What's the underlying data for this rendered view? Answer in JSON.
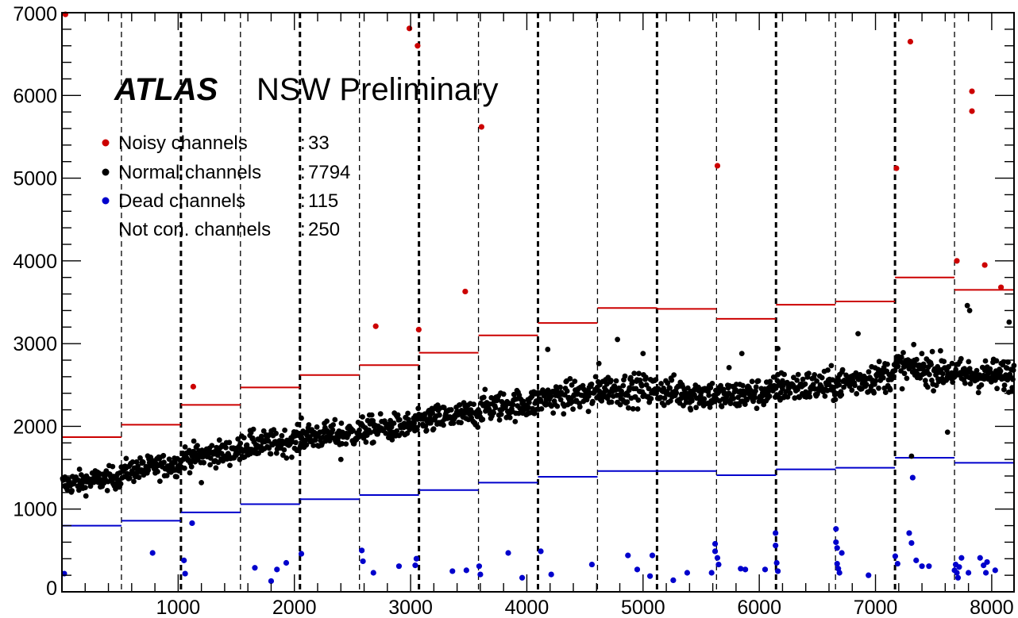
{
  "chart_data": {
    "type": "scatter",
    "title": "",
    "xlabel": "",
    "ylabel": "",
    "xlim": [
      0,
      8192
    ],
    "ylim": [
      0,
      7000
    ],
    "x_ticks": [
      1000,
      2000,
      3000,
      4000,
      5000,
      6000,
      7000,
      8000
    ],
    "y_ticks": [
      0,
      1000,
      2000,
      3000,
      4000,
      5000,
      6000,
      7000
    ],
    "grid": false,
    "experiment_label": "ATLAS",
    "experiment_sublabel": "NSW Preliminary",
    "legend": [
      {
        "label": "Noisy channels",
        "separator": ":",
        "count": "33",
        "color": "#cc0000",
        "marker": "dot"
      },
      {
        "label": "Normal channels",
        "separator": ":",
        "count": "7794",
        "color": "#000000",
        "marker": "dot"
      },
      {
        "label": "Dead channels",
        "separator": ":",
        "count": "115",
        "color": "#0000cc",
        "marker": "dot"
      },
      {
        "label": "Not con. channels",
        "separator": ":",
        "count": "250",
        "color": "",
        "marker": "none"
      }
    ],
    "vpbs_dividers_thin": [
      512,
      1536,
      2560,
      3584,
      4608,
      5632,
      6656,
      7680
    ],
    "vpbs_dividers_thick": [
      1024,
      2048,
      3072,
      4096,
      5120,
      6144,
      7168
    ],
    "board_segments": [
      {
        "x0": 0,
        "x1": 512,
        "noisy_threshold": 1870,
        "dead_threshold": 800,
        "normal_mean": 1300
      },
      {
        "x0": 512,
        "x1": 1024,
        "noisy_threshold": 2020,
        "dead_threshold": 860,
        "normal_mean": 1450
      },
      {
        "x0": 1024,
        "x1": 1536,
        "noisy_threshold": 2260,
        "dead_threshold": 960,
        "normal_mean": 1620
      },
      {
        "x0": 1536,
        "x1": 2048,
        "noisy_threshold": 2470,
        "dead_threshold": 1060,
        "normal_mean": 1760
      },
      {
        "x0": 2048,
        "x1": 2560,
        "noisy_threshold": 2620,
        "dead_threshold": 1120,
        "normal_mean": 1870
      },
      {
        "x0": 2560,
        "x1": 3072,
        "noisy_threshold": 2740,
        "dead_threshold": 1170,
        "normal_mean": 1950
      },
      {
        "x0": 3072,
        "x1": 3584,
        "noisy_threshold": 2890,
        "dead_threshold": 1230,
        "normal_mean": 2060
      },
      {
        "x0": 3584,
        "x1": 4096,
        "noisy_threshold": 3100,
        "dead_threshold": 1320,
        "normal_mean": 2220
      },
      {
        "x0": 4096,
        "x1": 4608,
        "noisy_threshold": 3250,
        "dead_threshold": 1390,
        "normal_mean": 2330
      },
      {
        "x0": 4608,
        "x1": 5120,
        "noisy_threshold": 3430,
        "dead_threshold": 1460,
        "normal_mean": 2450
      },
      {
        "x0": 5120,
        "x1": 5632,
        "noisy_threshold": 3420,
        "dead_threshold": 1460,
        "normal_mean": 2430
      },
      {
        "x0": 5632,
        "x1": 6144,
        "noisy_threshold": 3300,
        "dead_threshold": 1410,
        "normal_mean": 2350
      },
      {
        "x0": 6144,
        "x1": 6656,
        "noisy_threshold": 3470,
        "dead_threshold": 1480,
        "normal_mean": 2470
      },
      {
        "x0": 6656,
        "x1": 7168,
        "noisy_threshold": 3510,
        "dead_threshold": 1500,
        "normal_mean": 2510
      },
      {
        "x0": 7168,
        "x1": 7680,
        "noisy_threshold": 3800,
        "dead_threshold": 1620,
        "normal_mean": 2720
      },
      {
        "x0": 7680,
        "x1": 8192,
        "noisy_threshold": 3650,
        "dead_threshold": 1560,
        "normal_mean": 2620
      }
    ],
    "series": [
      {
        "name": "Noisy channels",
        "color": "#cc0000",
        "points": [
          [
            30,
            6980
          ],
          [
            1130,
            2480
          ],
          [
            2700,
            3210
          ],
          [
            2990,
            6810
          ],
          [
            3060,
            6600
          ],
          [
            3070,
            3170
          ],
          [
            3470,
            3630
          ],
          [
            3610,
            5620
          ],
          [
            5640,
            5150
          ],
          [
            7180,
            5120
          ],
          [
            7300,
            6650
          ],
          [
            7700,
            4000
          ],
          [
            7830,
            6050
          ],
          [
            7830,
            5810
          ],
          [
            7940,
            3950
          ],
          [
            8080,
            3680
          ]
        ]
      },
      {
        "name": "Dead channels",
        "color": "#0000cc",
        "points": [
          [
            20,
            220
          ],
          [
            780,
            470
          ],
          [
            1050,
            380
          ],
          [
            1060,
            220
          ],
          [
            1120,
            830
          ],
          [
            1660,
            290
          ],
          [
            1800,
            130
          ],
          [
            1850,
            270
          ],
          [
            1930,
            350
          ],
          [
            2060,
            460
          ],
          [
            2580,
            500
          ],
          [
            2590,
            370
          ],
          [
            2680,
            230
          ],
          [
            2900,
            310
          ],
          [
            3040,
            320
          ],
          [
            3050,
            400
          ],
          [
            3360,
            250
          ],
          [
            3480,
            260
          ],
          [
            3590,
            310
          ],
          [
            3600,
            210
          ],
          [
            3840,
            470
          ],
          [
            3960,
            170
          ],
          [
            4120,
            490
          ],
          [
            4210,
            210
          ],
          [
            4560,
            330
          ],
          [
            4870,
            440
          ],
          [
            4950,
            270
          ],
          [
            5060,
            190
          ],
          [
            5080,
            440
          ],
          [
            5260,
            140
          ],
          [
            5380,
            230
          ],
          [
            5590,
            230
          ],
          [
            5620,
            580
          ],
          [
            5620,
            490
          ],
          [
            5640,
            410
          ],
          [
            5650,
            330
          ],
          [
            5840,
            280
          ],
          [
            5880,
            270
          ],
          [
            6050,
            270
          ],
          [
            6140,
            710
          ],
          [
            6140,
            560
          ],
          [
            6150,
            350
          ],
          [
            6160,
            250
          ],
          [
            6660,
            760
          ],
          [
            6660,
            600
          ],
          [
            6670,
            530
          ],
          [
            6670,
            340
          ],
          [
            6680,
            280
          ],
          [
            6690,
            230
          ],
          [
            6710,
            470
          ],
          [
            6940,
            200
          ],
          [
            7170,
            430
          ],
          [
            7190,
            340
          ],
          [
            7290,
            710
          ],
          [
            7310,
            590
          ],
          [
            7320,
            1380
          ],
          [
            7350,
            380
          ],
          [
            7400,
            310
          ],
          [
            7460,
            310
          ],
          [
            7700,
            230
          ],
          [
            7710,
            170
          ],
          [
            7720,
            300
          ],
          [
            7740,
            410
          ],
          [
            7800,
            230
          ],
          [
            7900,
            410
          ],
          [
            7930,
            320
          ],
          [
            7950,
            230
          ],
          [
            7960,
            360
          ],
          [
            8030,
            260
          ],
          [
            7680,
            260
          ],
          [
            7690,
            330
          ]
        ]
      },
      {
        "name": "Normal channels",
        "color": "#000000",
        "outliers": [
          [
            1200,
            1320
          ],
          [
            1620,
            1950
          ],
          [
            2150,
            1960
          ],
          [
            2400,
            1600
          ],
          [
            2680,
            2030
          ],
          [
            3350,
            2200
          ],
          [
            4180,
            2930
          ],
          [
            4530,
            2180
          ],
          [
            4780,
            3050
          ],
          [
            5410,
            2200
          ],
          [
            5850,
            2880
          ],
          [
            5740,
            2710
          ],
          [
            6160,
            2940
          ],
          [
            6850,
            3120
          ],
          [
            7310,
            1640
          ],
          [
            7790,
            3460
          ],
          [
            7810,
            3400
          ],
          [
            8150,
            3260
          ],
          [
            7620,
            1930
          ],
          [
            5000,
            2880
          ],
          [
            6200,
            2550
          ],
          [
            2060,
            2100
          ],
          [
            4620,
            2760
          ]
        ]
      }
    ]
  }
}
